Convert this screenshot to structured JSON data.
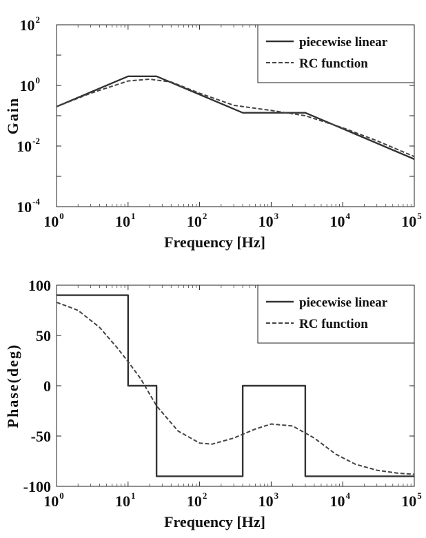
{
  "chart_data": [
    {
      "type": "line",
      "xlabel": "Frequency [Hz]",
      "ylabel": "Gain",
      "x_scale": "log",
      "y_scale": "log",
      "xlim": [
        1,
        100000
      ],
      "ylim": [
        0.0001,
        100
      ],
      "x_ticks": [
        {
          "base": "10",
          "exp": "0"
        },
        {
          "base": "10",
          "exp": "1"
        },
        {
          "base": "10",
          "exp": "2"
        },
        {
          "base": "10",
          "exp": "3"
        },
        {
          "base": "10",
          "exp": "4"
        },
        {
          "base": "10",
          "exp": "5"
        }
      ],
      "y_ticks": [
        {
          "base": "10",
          "exp": "2"
        },
        {
          "base": "10",
          "exp": "0"
        },
        {
          "base": "10",
          "exp": "-2"
        },
        {
          "base": "10",
          "exp": "-4"
        }
      ],
      "legend_position": "top-right",
      "grid": false,
      "series": [
        {
          "name": "piecewise linear",
          "style": "solid",
          "color": "#333333",
          "x": [
            1,
            10,
            25,
            400,
            3000,
            100000
          ],
          "y": [
            0.2,
            2.0,
            2.0,
            0.125,
            0.125,
            0.0037
          ]
        },
        {
          "name": "RC function",
          "style": "dashed",
          "color": "#444444",
          "x": [
            1,
            3,
            10,
            20,
            40,
            100,
            300,
            1000,
            3000,
            10000,
            30000,
            100000
          ],
          "y": [
            0.2,
            0.55,
            1.4,
            1.6,
            1.3,
            0.55,
            0.22,
            0.15,
            0.1,
            0.04,
            0.015,
            0.0045
          ]
        }
      ]
    },
    {
      "type": "line",
      "xlabel": "Frequency [Hz]",
      "ylabel": "Phase(deg)",
      "x_scale": "log",
      "xlim": [
        1,
        100000
      ],
      "ylim": [
        -100,
        100
      ],
      "x_ticks": [
        {
          "base": "10",
          "exp": "0"
        },
        {
          "base": "10",
          "exp": "1"
        },
        {
          "base": "10",
          "exp": "2"
        },
        {
          "base": "10",
          "exp": "3"
        },
        {
          "base": "10",
          "exp": "4"
        },
        {
          "base": "10",
          "exp": "5"
        }
      ],
      "y_ticks": [
        "100",
        "50",
        "0",
        "-50",
        "-100"
      ],
      "y_tick_values": [
        100,
        50,
        0,
        -50,
        -100
      ],
      "legend_position": "top-right",
      "grid": false,
      "series": [
        {
          "name": "piecewise linear",
          "style": "solid",
          "color": "#333333",
          "x": [
            1,
            10,
            10,
            25,
            25,
            400,
            400,
            3000,
            3000,
            100000
          ],
          "y": [
            90,
            90,
            0,
            0,
            -90,
            -90,
            0,
            0,
            -90,
            -90
          ]
        },
        {
          "name": "RC function",
          "style": "dashed",
          "color": "#444444",
          "x": [
            1,
            2,
            4,
            7,
            10,
            15,
            25,
            50,
            100,
            150,
            300,
            600,
            1000,
            2000,
            4000,
            8000,
            15000,
            30000,
            60000,
            100000
          ],
          "y": [
            83,
            75,
            58,
            38,
            24,
            7,
            -20,
            -45,
            -57,
            -58,
            -52,
            -43,
            -38,
            -40,
            -52,
            -68,
            -78,
            -84,
            -87,
            -88
          ]
        }
      ]
    }
  ]
}
